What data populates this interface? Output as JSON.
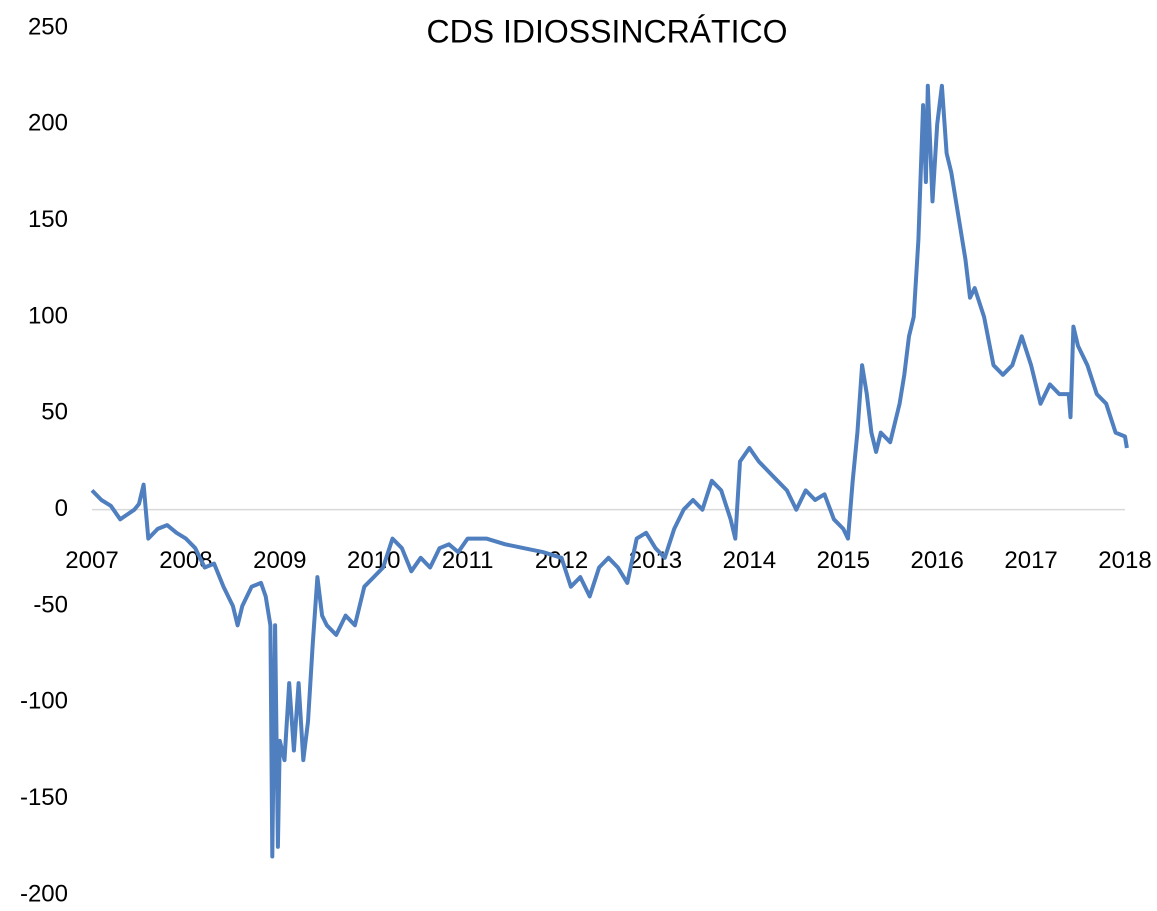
{
  "chart_data": {
    "type": "line",
    "title": "CDS IDIOSSINCRÁTICO",
    "xlim": [
      2007,
      2018
    ],
    "xticks": [
      2007,
      2008,
      2009,
      2010,
      2011,
      2012,
      2013,
      2014,
      2015,
      2016,
      2017,
      2018
    ],
    "ylim": [
      -200,
      250
    ],
    "yticks": [
      -200,
      -150,
      -100,
      -50,
      0,
      50,
      100,
      150,
      200,
      250
    ],
    "grid": false,
    "series": [
      {
        "color": "#4f7fbf",
        "x": [
          2007.0,
          2007.1,
          2007.2,
          2007.3,
          2007.45,
          2007.5,
          2007.55,
          2007.6,
          2007.7,
          2007.8,
          2007.9,
          2008.0,
          2008.1,
          2008.2,
          2008.3,
          2008.4,
          2008.5,
          2008.55,
          2008.6,
          2008.7,
          2008.8,
          2008.85,
          2008.9,
          2008.92,
          2008.95,
          2008.98,
          2009.0,
          2009.05,
          2009.1,
          2009.15,
          2009.2,
          2009.25,
          2009.3,
          2009.35,
          2009.4,
          2009.45,
          2009.5,
          2009.6,
          2009.7,
          2009.8,
          2009.9,
          2010.0,
          2010.1,
          2010.2,
          2010.3,
          2010.4,
          2010.5,
          2010.6,
          2010.7,
          2010.8,
          2010.9,
          2011.0,
          2011.2,
          2011.4,
          2011.6,
          2011.8,
          2012.0,
          2012.1,
          2012.2,
          2012.3,
          2012.4,
          2012.5,
          2012.6,
          2012.7,
          2012.8,
          2012.9,
          2013.0,
          2013.1,
          2013.2,
          2013.3,
          2013.4,
          2013.5,
          2013.6,
          2013.7,
          2013.8,
          2013.85,
          2013.9,
          2014.0,
          2014.1,
          2014.2,
          2014.3,
          2014.4,
          2014.5,
          2014.6,
          2014.7,
          2014.8,
          2014.9,
          2015.0,
          2015.05,
          2015.1,
          2015.15,
          2015.2,
          2015.25,
          2015.3,
          2015.35,
          2015.4,
          2015.5,
          2015.6,
          2015.65,
          2015.7,
          2015.75,
          2015.8,
          2015.85,
          2015.88,
          2015.9,
          2015.95,
          2016.0,
          2016.05,
          2016.1,
          2016.15,
          2016.2,
          2016.3,
          2016.35,
          2016.4,
          2016.5,
          2016.6,
          2016.7,
          2016.8,
          2016.9,
          2017.0,
          2017.1,
          2017.2,
          2017.3,
          2017.4,
          2017.42,
          2017.45,
          2017.5,
          2017.6,
          2017.7,
          2017.8,
          2017.9,
          2018.0,
          2018.02
        ],
        "values": [
          10,
          5,
          2,
          -5,
          0,
          3,
          13,
          -15,
          -10,
          -8,
          -12,
          -15,
          -20,
          -30,
          -28,
          -40,
          -50,
          -60,
          -50,
          -40,
          -38,
          -45,
          -60,
          -180,
          -60,
          -175,
          -120,
          -130,
          -90,
          -125,
          -90,
          -130,
          -110,
          -70,
          -35,
          -55,
          -60,
          -65,
          -55,
          -60,
          -40,
          -35,
          -30,
          -15,
          -20,
          -32,
          -25,
          -30,
          -20,
          -18,
          -22,
          -15,
          -15,
          -18,
          -20,
          -22,
          -25,
          -40,
          -35,
          -45,
          -30,
          -25,
          -30,
          -38,
          -15,
          -12,
          -20,
          -25,
          -10,
          0,
          5,
          0,
          15,
          10,
          -5,
          -15,
          25,
          32,
          25,
          20,
          15,
          10,
          0,
          10,
          5,
          8,
          -5,
          -10,
          -15,
          15,
          40,
          75,
          60,
          40,
          30,
          40,
          35,
          55,
          70,
          90,
          100,
          140,
          210,
          170,
          220,
          160,
          200,
          220,
          185,
          175,
          160,
          130,
          110,
          115,
          100,
          75,
          70,
          75,
          90,
          75,
          55,
          65,
          60,
          60,
          48,
          95,
          85,
          75,
          60,
          55,
          40,
          38,
          32
        ]
      }
    ]
  }
}
